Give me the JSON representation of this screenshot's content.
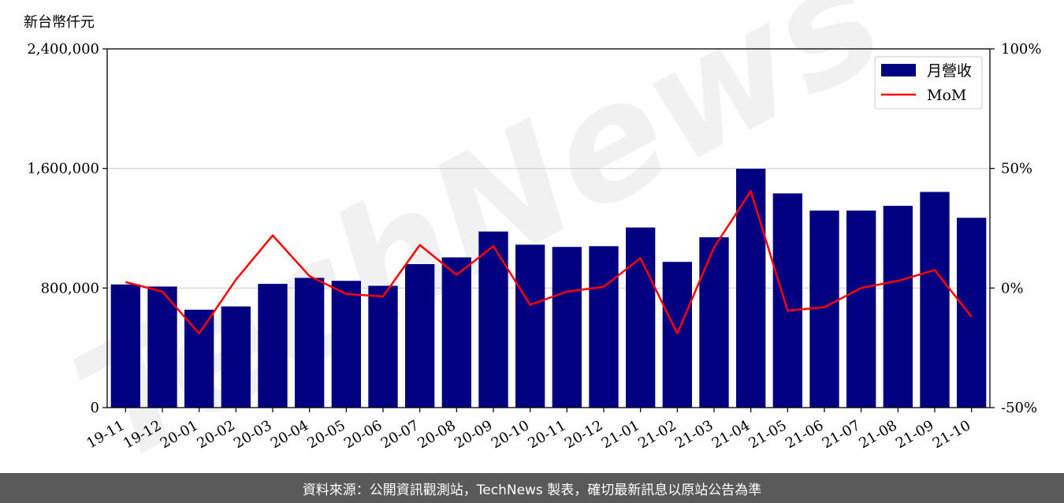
{
  "unit_label": "新台幣仟元",
  "watermark": "TechNews",
  "footer_text": "資料來源：公開資訊觀測站，TechNews 製表，確切最新訊息以原站公告為準",
  "colors": {
    "bar": "#000080",
    "line": "#ff0000",
    "grid": "#d0d0d0",
    "footer_bg": "#5a5a5a"
  },
  "chart_data": {
    "type": "bar",
    "categories": [
      "19-11",
      "19-12",
      "20-01",
      "20-02",
      "20-03",
      "20-04",
      "20-05",
      "20-06",
      "20-07",
      "20-08",
      "20-09",
      "20-10",
      "20-11",
      "20-12",
      "21-01",
      "21-02",
      "21-03",
      "21-04",
      "21-05",
      "21-06",
      "21-07",
      "21-08",
      "21-09",
      "21-10"
    ],
    "series": [
      {
        "name": "月營收",
        "type": "bar",
        "axis": "left",
        "values": [
          824000,
          810000,
          655000,
          677000,
          828000,
          868000,
          848000,
          815000,
          960000,
          1005000,
          1178000,
          1090000,
          1075000,
          1080000,
          1205000,
          975000,
          1140000,
          1598000,
          1433000,
          1318000,
          1318000,
          1350000,
          1443000,
          1270000
        ]
      },
      {
        "name": "MoM",
        "type": "line",
        "axis": "right",
        "values": [
          0.025,
          -0.015,
          -0.19,
          0.035,
          0.22,
          0.05,
          -0.025,
          -0.035,
          0.18,
          0.055,
          0.175,
          -0.07,
          -0.015,
          0.005,
          0.125,
          -0.19,
          0.17,
          0.405,
          -0.095,
          -0.08,
          0.0,
          0.03,
          0.075,
          -0.12
        ]
      }
    ],
    "ylim": [
      0,
      2400000
    ],
    "y2lim": [
      -0.5,
      1.0
    ],
    "yticks": [
      "0",
      "800,000",
      "1,600,000",
      "2,400,000"
    ],
    "y2ticks": [
      "-50%",
      "0%",
      "50%",
      "100%"
    ],
    "grid": "horizontal",
    "legend_position": "top-right"
  }
}
